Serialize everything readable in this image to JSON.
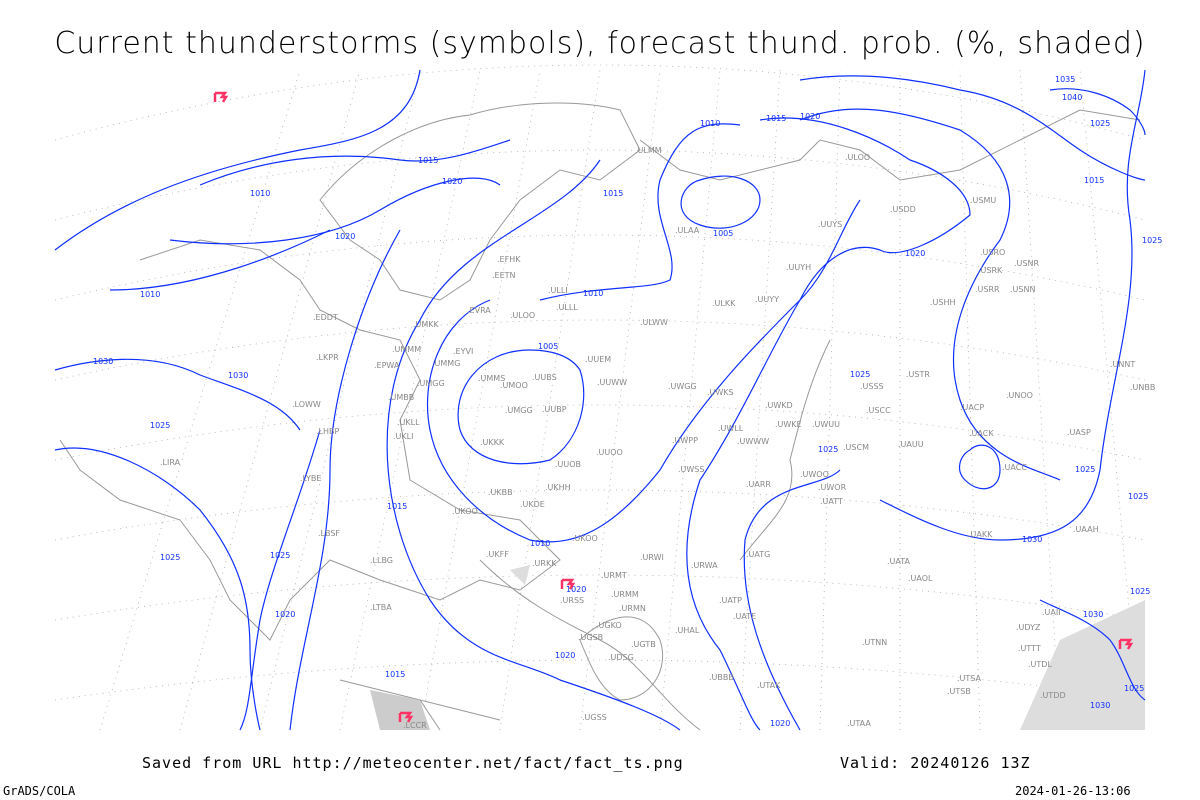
{
  "title": "Current thunderstorms (symbols), forecast thund. prob. (%, shaded)",
  "footer": {
    "saved_from": "Saved from URL http://meteocenter.net/fact/fact_ts.png",
    "valid": "Valid: 20240126 13Z",
    "software": "GrADS/COLA",
    "timestamp": "2024-01-26-13:06"
  },
  "colors": {
    "isobars": "#1030ff",
    "coastlines": "#999999",
    "stations": "#888888",
    "thunderstorm_symbol": "#ff3366",
    "shading": "#cccccc"
  },
  "isobar_labels": [
    "1010",
    "1015",
    "1020",
    "1010",
    "1020",
    "1030",
    "1030",
    "1025",
    "1025",
    "1025",
    "1020",
    "1020",
    "1015",
    "1015",
    "1010",
    "1005",
    "1010",
    "1015",
    "1005",
    "1010",
    "1015",
    "1020",
    "1020",
    "1025",
    "1025",
    "1030",
    "1035",
    "1040",
    "1025",
    "1015",
    "1020",
    "1025",
    "1025",
    "1025",
    "1020",
    "1025",
    "1030",
    "1025",
    "1030"
  ],
  "stations": [
    "EFHK",
    "ULLI",
    "EVRA",
    "ULOO",
    "UMKK",
    "EYVI",
    "UMMG",
    "UMGG",
    "UMMS",
    "UMOO",
    "UUBS",
    "UUEM",
    "UUWW",
    "UUBP",
    "UMGG",
    "UKKK",
    "UUOB",
    "UUOO",
    "UKHH",
    "UKOO",
    "UKDE",
    "UKFF",
    "URKK",
    "URSS",
    "URMT",
    "URMM",
    "URMN",
    "URWI",
    "URWA",
    "UATG",
    "UATT",
    "UATA",
    "UAOL",
    "UACC",
    "UARR",
    "UAKK",
    "UWOO",
    "UWKS",
    "UWPP",
    "UWSS",
    "UWGG",
    "ULWW",
    "ULKK",
    "UUYY",
    "UUYH",
    "UUYS",
    "ULAA",
    "ULMM",
    "ULOO",
    "USDD",
    "USMU",
    "USRR",
    "USNN",
    "USHH",
    "USRO",
    "USRK",
    "USNR",
    "USTR",
    "USSS",
    "USCC",
    "USCM",
    "UAUU",
    "UACK",
    "UACP",
    "UNOO",
    "UASP",
    "UAAH",
    "UNBB",
    "UNNT",
    "UTNN",
    "UTSA",
    "UTSB",
    "UTAK",
    "UTAA",
    "UBBB",
    "UDSG",
    "UGTB",
    "UGSB",
    "UGKO",
    "UGSS",
    "LCCR",
    "LLBG",
    "LTBA",
    "LBSF",
    "LYBE",
    "LHBP",
    "LKPR",
    "LOWW",
    "EPWA",
    "LIRA",
    "EDDT",
    "UKLL",
    "UKLI",
    "UKBB",
    "UKOO",
    "EETN",
    "UMMM",
    "UMBB",
    "ULLL",
    "UWWW",
    "UWUU",
    "UWKD",
    "UWKE",
    "UWLL",
    "UWOR",
    "UATE",
    "UATP",
    "UHAL",
    "UDYZ",
    "UTTT",
    "UTDD",
    "UTDL",
    "UAII"
  ],
  "thunderstorm_symbol_count": 4
}
